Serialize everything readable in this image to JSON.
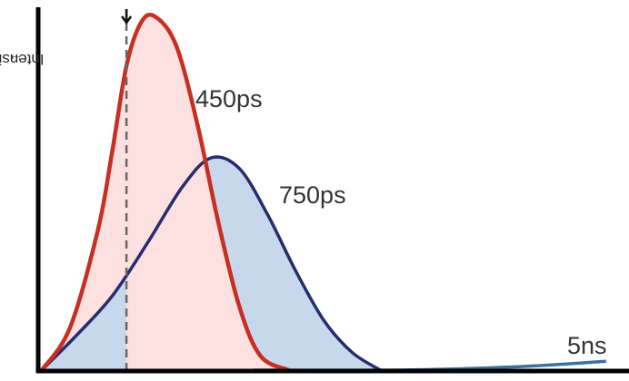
{
  "chart_data": {
    "type": "line",
    "ylabel": "Intensity",
    "ylabel_arrow": "→",
    "xlabel": "",
    "series": [
      {
        "name": "450ps",
        "color": "#c62f21",
        "fill": "#fde0e0",
        "points": [
          [
            0,
            0
          ],
          [
            4,
            0.12
          ],
          [
            8,
            0.4
          ],
          [
            10,
            0.62
          ],
          [
            12,
            0.86
          ],
          [
            14,
            0.98
          ],
          [
            16,
            1.0
          ],
          [
            19,
            0.92
          ],
          [
            22,
            0.7
          ],
          [
            25,
            0.42
          ],
          [
            28,
            0.18
          ],
          [
            31,
            0.04
          ],
          [
            35,
            0.0
          ]
        ]
      },
      {
        "name": "750ps",
        "color": "#262d6e",
        "fill": "#c8d8ec",
        "points": [
          [
            0,
            0
          ],
          [
            5,
            0.1
          ],
          [
            10,
            0.21
          ],
          [
            15,
            0.36
          ],
          [
            20,
            0.52
          ],
          [
            24,
            0.6
          ],
          [
            28,
            0.57
          ],
          [
            32,
            0.44
          ],
          [
            36,
            0.28
          ],
          [
            40,
            0.14
          ],
          [
            44,
            0.05
          ],
          [
            48,
            0.0
          ]
        ]
      },
      {
        "name": "5ns",
        "color": "#3c6f9a",
        "points": [
          [
            30,
            0.0
          ],
          [
            50,
            0.0
          ],
          [
            60,
            0.004
          ],
          [
            70,
            0.012
          ],
          [
            80,
            0.025
          ]
        ]
      }
    ],
    "marker_x": 12,
    "grid": false,
    "legend": "labels on curves"
  }
}
